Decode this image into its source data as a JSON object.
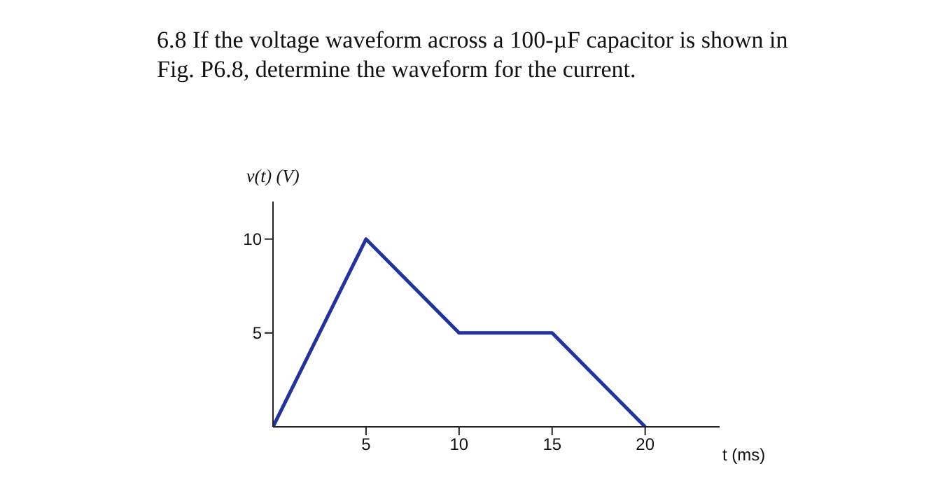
{
  "chart_data": {
    "type": "line",
    "title": "6.8 If the voltage waveform across a 100-µF capacitor is shown in Fig. P6.8, determine the waveform for the current.",
    "xlabel": "t (ms)",
    "ylabel": "v(t) (V)",
    "x": [
      0,
      5,
      10,
      15,
      20
    ],
    "series": [
      {
        "color": "#2233a0",
        "values": [
          0,
          10,
          5,
          5,
          0
        ]
      }
    ],
    "xlim": [
      0,
      24
    ],
    "xticks": [
      5,
      10,
      15,
      20
    ],
    "ylim": [
      0,
      12
    ],
    "yticks": [
      5,
      10
    ],
    "marker": "none",
    "line_style": "solid"
  }
}
